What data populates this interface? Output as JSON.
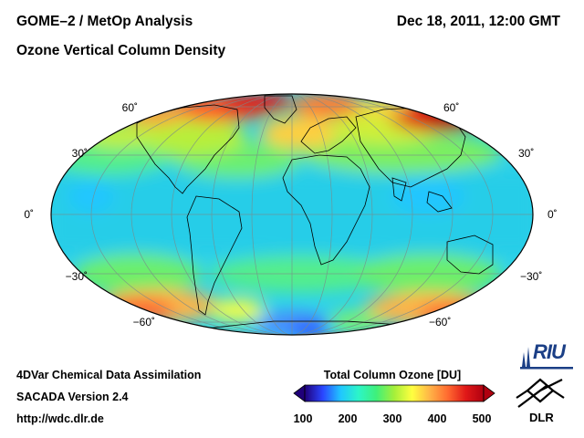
{
  "header": {
    "title": "GOME–2 / MetOp Analysis",
    "subtitle": "Ozone Vertical Column Density",
    "datetime": "Dec 18, 2011, 12:00 GMT"
  },
  "map": {
    "projection": "Mollweide",
    "lat_labels_left": [
      "60˚",
      "30˚",
      "0˚",
      "−30˚",
      "−60˚"
    ],
    "lat_labels_right": [
      "60˚",
      "30˚",
      "0˚",
      "−30˚",
      "−60˚"
    ]
  },
  "colorbar": {
    "title": "Total Column Ozone [DU]",
    "ticks": [
      "100",
      "200",
      "300",
      "400",
      "500"
    ],
    "colors": [
      "#20007a",
      "#2a45ff",
      "#20c6ff",
      "#2cf5c8",
      "#3ff07a",
      "#a5ef3a",
      "#ffff40",
      "#ffb347",
      "#ff6a30",
      "#e01818",
      "#b00010"
    ]
  },
  "footer": {
    "line1": "4DVar Chemical Data Assimilation",
    "line2": "SACADA Version 2.4",
    "line3": "http://wdc.dlr.de"
  },
  "logos": {
    "riu": "RIU",
    "dlr": "DLR"
  }
}
